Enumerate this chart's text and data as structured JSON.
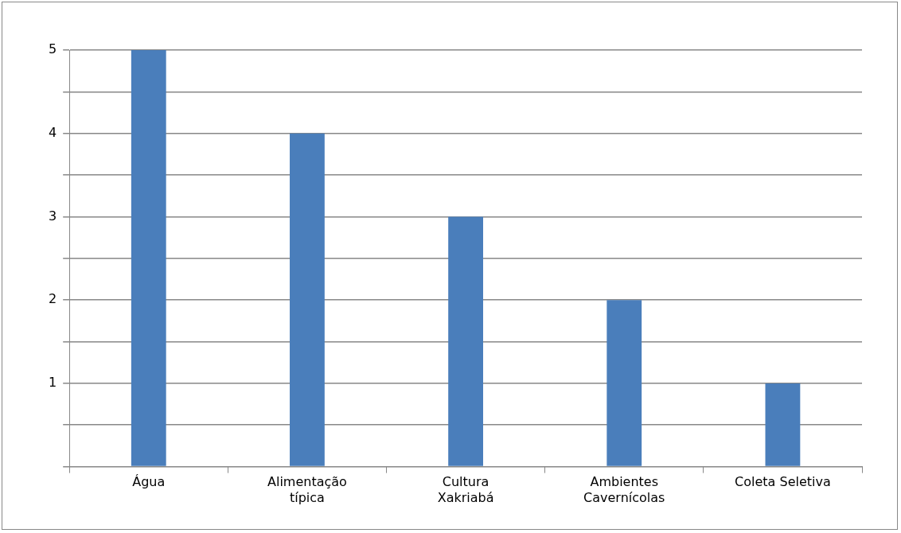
{
  "chart_data": {
    "type": "bar",
    "categories": [
      "Água",
      "Alimentação típica",
      "Cultura Xakriabá",
      "Ambientes Cavernícolas",
      "Coleta Seletiva"
    ],
    "values": [
      5,
      4,
      3,
      2,
      1
    ],
    "color": "#4a7ebb",
    "ylim": [
      0,
      5
    ],
    "yticks": [
      {
        "value": 0,
        "label": null
      },
      {
        "value": 0.5,
        "label": null
      },
      1,
      {
        "value": 1.5,
        "label": null
      },
      2,
      {
        "value": 2.5,
        "label": null
      },
      3,
      {
        "value": 3.5,
        "label": null
      },
      4,
      {
        "value": 4.5,
        "label": null
      },
      5
    ],
    "grid": true,
    "legend": false
  }
}
